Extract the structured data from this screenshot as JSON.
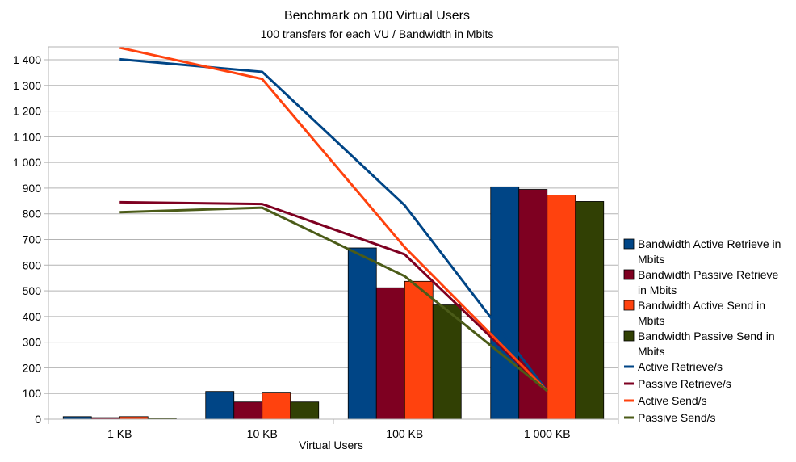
{
  "chart_data": {
    "type": "bar",
    "title": "Benchmark on 100 Virtual Users",
    "subtitle": "100 transfers for each VU / Bandwidth in Mbits",
    "xlabel": "Virtual Users",
    "ylabel": "",
    "categories": [
      "1 KB",
      "10 KB",
      "100 KB",
      "1 000 KB"
    ],
    "ylim": [
      0,
      1400
    ],
    "y_ticks": [
      0,
      100,
      200,
      300,
      400,
      500,
      600,
      700,
      800,
      900,
      1000,
      1100,
      1200,
      1300,
      1400
    ],
    "y_tick_labels": [
      "0",
      "100",
      "200",
      "300",
      "400",
      "500",
      "600",
      "700",
      "800",
      "900",
      "1 000",
      "1 100",
      "1 200",
      "1 300",
      "1 400"
    ],
    "grid": true,
    "legend_position": "right",
    "bar_series": [
      {
        "name": "Bandwidth Active Retrieve in Mbits",
        "legend_lines": [
          "Bandwidth Active Retrieve in",
          "Mbits"
        ],
        "color": "#004586",
        "values": [
          10,
          108,
          667,
          905
        ]
      },
      {
        "name": "Bandwidth Passive Retrieve in Mbits",
        "legend_lines": [
          "Bandwidth Passive Retrieve",
          "in Mbits"
        ],
        "color": "#7e0021",
        "values": [
          6,
          67,
          512,
          895
        ]
      },
      {
        "name": "Bandwidth Active Send in Mbits",
        "legend_lines": [
          "Bandwidth Active Send in",
          "Mbits"
        ],
        "color": "#ff420e",
        "values": [
          10,
          105,
          537,
          873
        ]
      },
      {
        "name": "Bandwidth Passive Send in Mbits",
        "legend_lines": [
          "Bandwidth Passive Send in",
          "Mbits"
        ],
        "color": "#314004",
        "values": [
          5,
          67,
          445,
          848
        ]
      }
    ],
    "line_series": [
      {
        "name": "Active Retrieve/s",
        "color": "#004586",
        "values": [
          1402,
          1353,
          833,
          110
        ]
      },
      {
        "name": "Passive Retrieve/s",
        "color": "#7e0021",
        "values": [
          845,
          838,
          642,
          110
        ]
      },
      {
        "name": "Active Send/s",
        "color": "#ff420e",
        "values": [
          1447,
          1325,
          670,
          110
        ]
      },
      {
        "name": "Passive Send/s",
        "color": "#4b5b18",
        "values": [
          806,
          824,
          557,
          110
        ]
      }
    ]
  }
}
